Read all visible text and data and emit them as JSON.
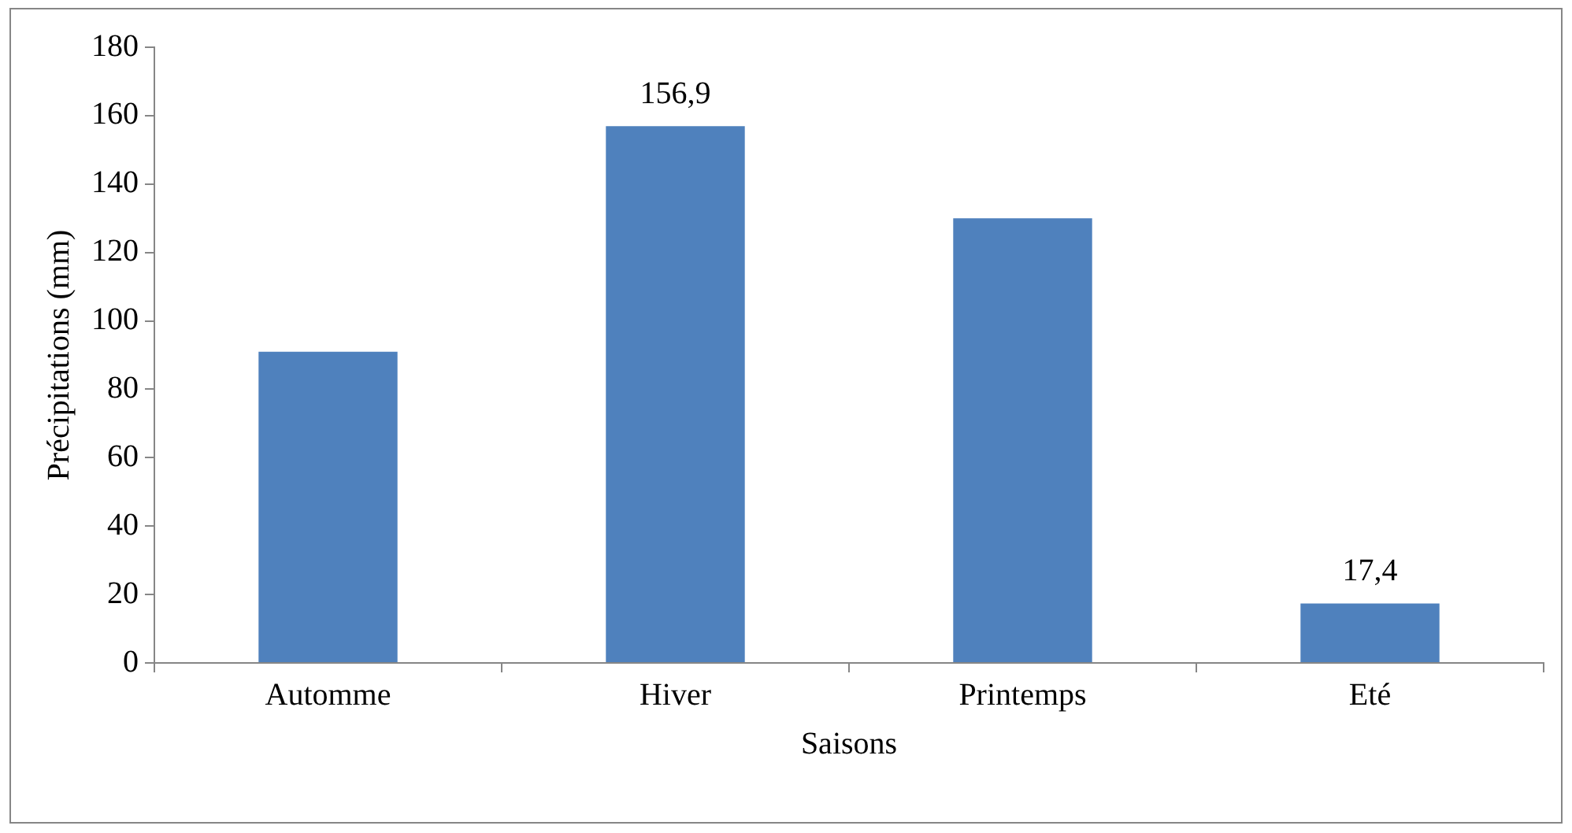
{
  "chart_data": {
    "type": "bar",
    "xlabel": "Saisons",
    "ylabel": "Précipitations (mm)",
    "categories": [
      "Automme",
      "Hiver",
      "Printemps",
      "Eté"
    ],
    "values": [
      91,
      156.9,
      130,
      17.4
    ],
    "color": "#4f81bd",
    "value_labels": [
      null,
      "156,9",
      null,
      "17,4"
    ],
    "ylim": [
      0,
      180
    ],
    "yticks": [
      0,
      20,
      40,
      60,
      80,
      100,
      120,
      140,
      160,
      180
    ],
    "grid": false,
    "legend": false
  }
}
